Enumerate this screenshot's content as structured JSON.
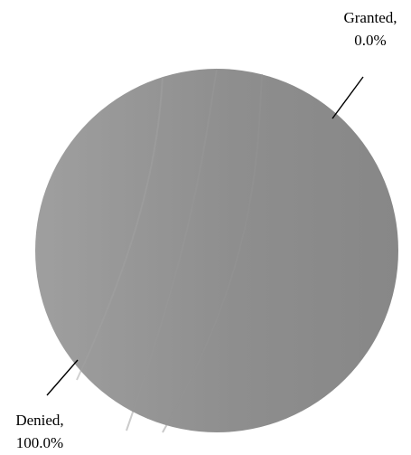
{
  "chart_data": {
    "type": "pie",
    "slices": [
      {
        "label": "Granted",
        "value": 0.0,
        "label_text": "Granted,",
        "pct_text": "0.0%"
      },
      {
        "label": "Denied",
        "value": 100.0,
        "label_text": "Denied,",
        "pct_text": "100.0%"
      }
    ],
    "colors": {
      "fill": "#8c8c8c",
      "text": "#000000",
      "leader": "#000000"
    }
  }
}
